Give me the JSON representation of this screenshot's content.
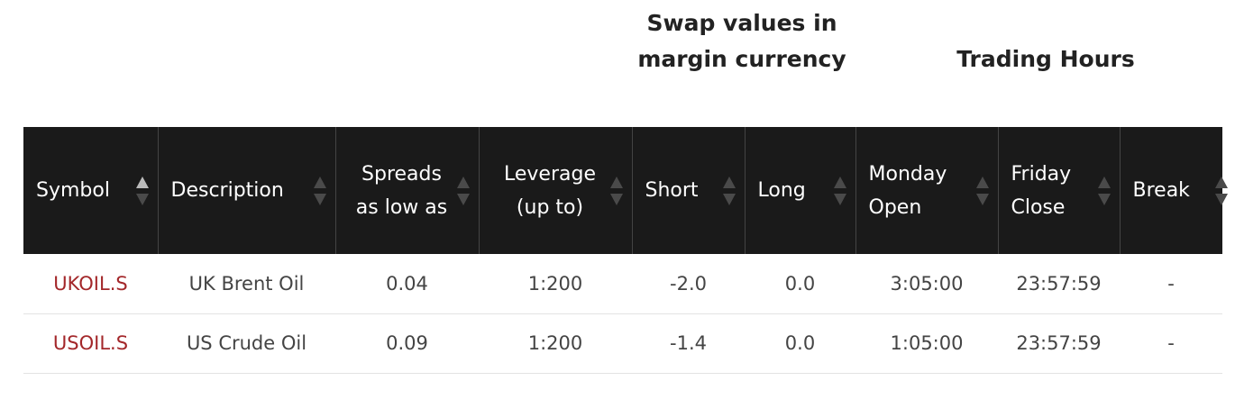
{
  "group_headers": {
    "swap": "Swap values in margin currency",
    "hours": "Trading Hours"
  },
  "columns": [
    {
      "key": "symbol",
      "label": "Symbol"
    },
    {
      "key": "description",
      "label": "Description"
    },
    {
      "key": "spreads",
      "label": "Spreads as low as"
    },
    {
      "key": "leverage",
      "label": "Leverage (up to)"
    },
    {
      "key": "short",
      "label": "Short"
    },
    {
      "key": "long",
      "label": "Long"
    },
    {
      "key": "monday_open",
      "label": "Monday Open"
    },
    {
      "key": "friday_close",
      "label": "Friday Close"
    },
    {
      "key": "break",
      "label": "Break"
    }
  ],
  "sorted_column": "symbol",
  "rows": [
    {
      "symbol": "UKOIL.S",
      "description": "UK Brent Oil",
      "spreads": "0.04",
      "leverage": "1:200",
      "short": "-2.0",
      "long": "0.0",
      "monday_open": "3:05:00",
      "friday_close": "23:57:59",
      "break": "-"
    },
    {
      "symbol": "USOIL.S",
      "description": "US Crude Oil",
      "spreads": "0.09",
      "leverage": "1:200",
      "short": "-1.4",
      "long": "0.0",
      "monday_open": "1:05:00",
      "friday_close": "23:57:59",
      "break": "-"
    }
  ],
  "colors": {
    "header_bg": "#1a1a1a",
    "symbol_link": "#a3272a"
  }
}
